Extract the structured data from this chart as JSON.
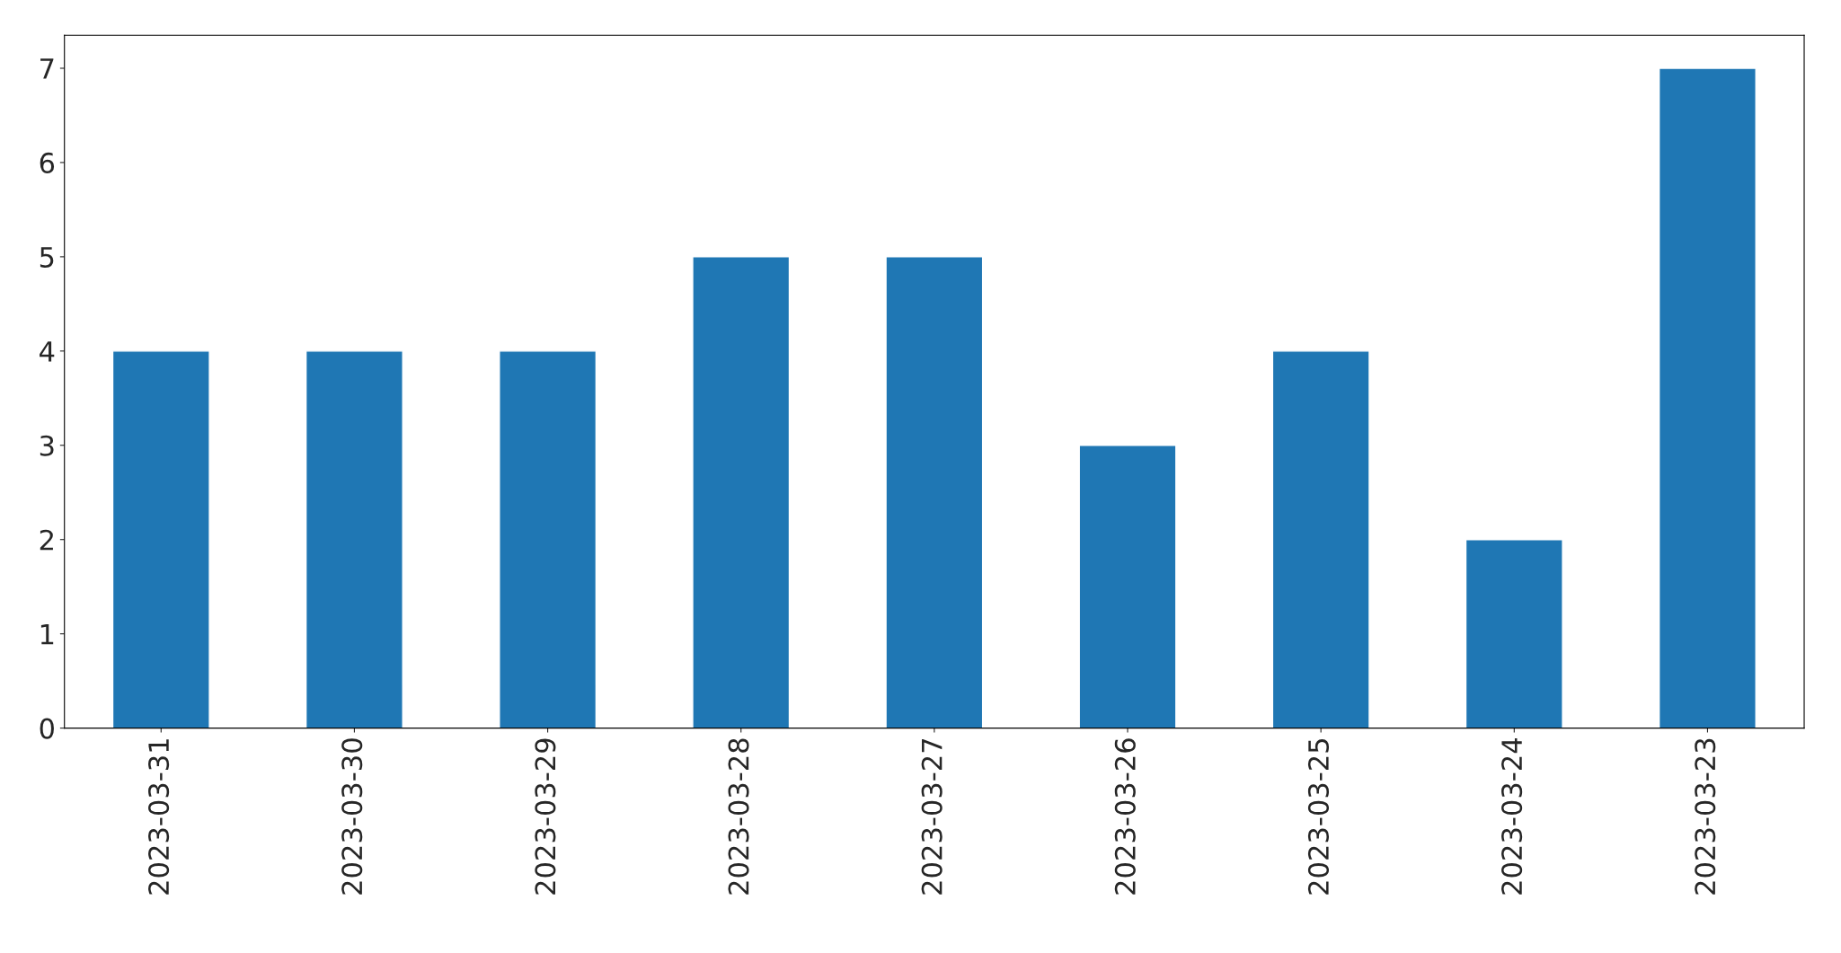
{
  "chart_data": {
    "type": "bar",
    "categories": [
      "2023-03-31",
      "2023-03-30",
      "2023-03-29",
      "2023-03-28",
      "2023-03-27",
      "2023-03-26",
      "2023-03-25",
      "2023-03-24",
      "2023-03-23"
    ],
    "values": [
      4,
      4,
      4,
      5,
      5,
      3,
      4,
      2,
      7
    ],
    "color": "#1f77b4",
    "ylim": [
      0,
      7.35
    ],
    "yticks": [
      0,
      1,
      2,
      3,
      4,
      5,
      6,
      7
    ],
    "grid": false,
    "legend": false
  }
}
